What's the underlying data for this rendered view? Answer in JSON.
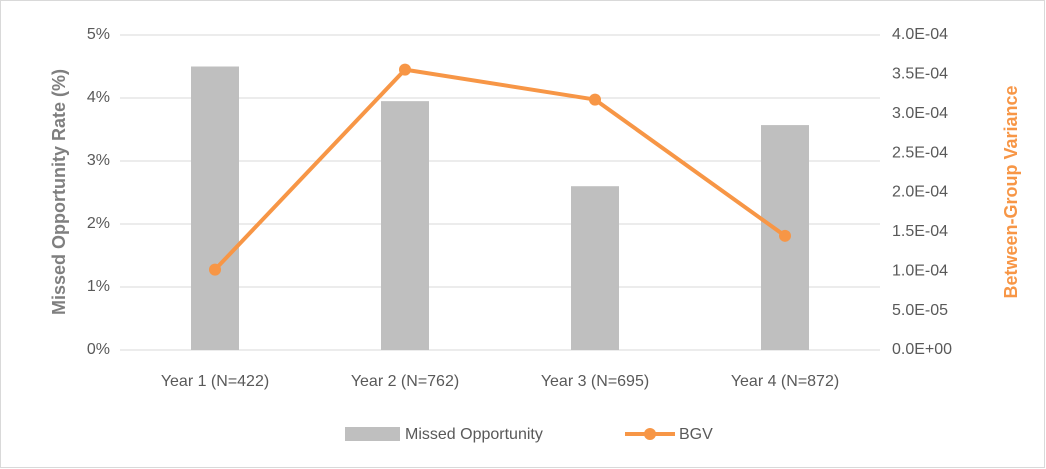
{
  "chart_data": {
    "type": "bar-line",
    "categories": [
      "Year 1 (N=422)",
      "Year 2 (N=762)",
      "Year 3 (N=695)",
      "Year 4 (N=872)"
    ],
    "series": [
      {
        "name": "Missed Opportunity",
        "type": "bar",
        "color": "#bfbfbf",
        "values": [
          4.5,
          3.95,
          2.6,
          3.57
        ]
      },
      {
        "name": "BGV",
        "type": "line",
        "axis": "y2",
        "color": "#f79646",
        "values": [
          0.000102,
          0.000356,
          0.000318,
          0.000145
        ]
      }
    ],
    "ylabel": "Missed Opportunity Rate (%)",
    "y2label": "Between-Group Variance",
    "ylim": [
      0,
      5
    ],
    "yticks": [
      {
        "value": 0,
        "label": "0%"
      },
      {
        "value": 1,
        "label": "1%"
      },
      {
        "value": 2,
        "label": "2%"
      },
      {
        "value": 3,
        "label": "3%"
      },
      {
        "value": 4,
        "label": "4%"
      },
      {
        "value": 5,
        "label": "5%"
      }
    ],
    "y2lim": [
      0,
      0.0004
    ],
    "y2ticks": [
      {
        "value": 0,
        "label": "0.0E+00"
      },
      {
        "value": 5e-05,
        "label": "5.0E-05"
      },
      {
        "value": 0.0001,
        "label": "1.0E-04"
      },
      {
        "value": 0.00015,
        "label": "1.5E-04"
      },
      {
        "value": 0.0002,
        "label": "2.0E-04"
      },
      {
        "value": 0.00025,
        "label": "2.5E-04"
      },
      {
        "value": 0.0003,
        "label": "3.0E-04"
      },
      {
        "value": 0.00035,
        "label": "3.5E-04"
      },
      {
        "value": 0.0004,
        "label": "4.0E-04"
      }
    ],
    "grid": true,
    "legend": "bottom"
  }
}
